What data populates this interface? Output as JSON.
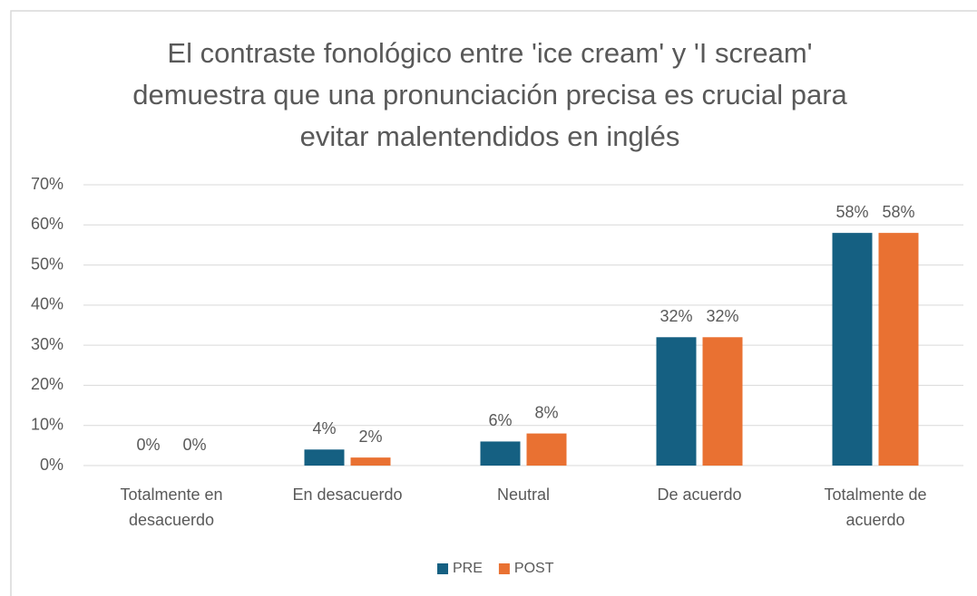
{
  "chart_data": {
    "type": "bar",
    "title": "El contraste fonológico entre 'ice cream' y 'I scream' demuestra que una pronunciación precisa es crucial para evitar malentendidos en inglés",
    "categories": [
      "Totalmente en desacuerdo",
      "En desacuerdo",
      "Neutral",
      "De acuerdo",
      "Totalmente de acuerdo"
    ],
    "series": [
      {
        "name": "PRE",
        "color": "#156082",
        "values": [
          0,
          4,
          6,
          32,
          58
        ],
        "value_labels": [
          "0%",
          "4%",
          "6%",
          "32%",
          "58%"
        ]
      },
      {
        "name": "POST",
        "color": "#e97132",
        "values": [
          0,
          2,
          8,
          32,
          58
        ],
        "value_labels": [
          "0%",
          "2%",
          "8%",
          "32%",
          "58%"
        ]
      }
    ],
    "ylim": [
      0,
      70
    ],
    "yticks": [
      {
        "value": 0,
        "label": "0%"
      },
      {
        "value": 10,
        "label": "10%"
      },
      {
        "value": 20,
        "label": "20%"
      },
      {
        "value": 30,
        "label": "30%"
      },
      {
        "value": 40,
        "label": "40%"
      },
      {
        "value": 50,
        "label": "50%"
      },
      {
        "value": 60,
        "label": "60%"
      },
      {
        "value": 70,
        "label": "70%"
      }
    ],
    "grid": true,
    "legend": "bottom"
  }
}
